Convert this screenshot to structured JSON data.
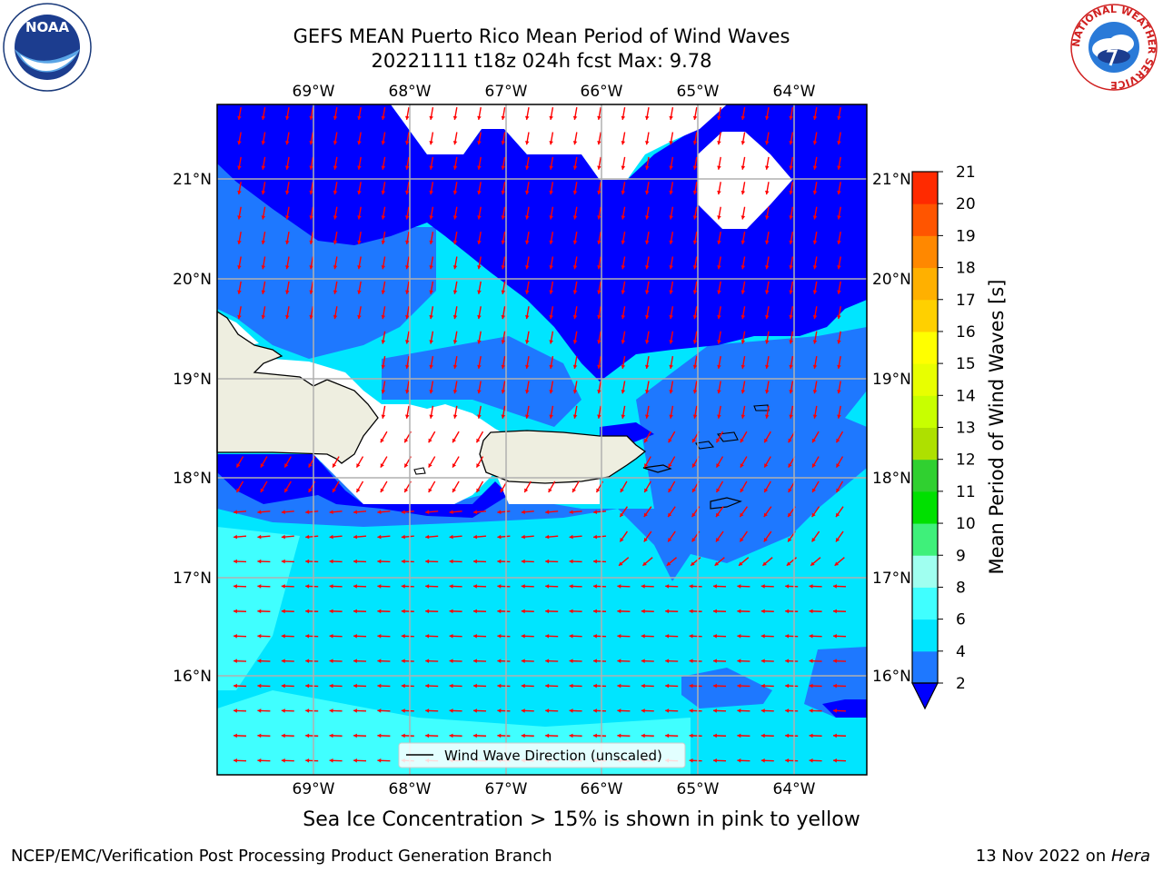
{
  "title_line1": "GEFS MEAN Puerto Rico Mean Period of Wind Waves",
  "title_line2": "20221111 t18z 024h fcst   Max: 9.78",
  "logos": {
    "left": "NOAA",
    "right_ring": "NATIONAL WEATHER SERVICE"
  },
  "map": {
    "lon_labels": [
      "69°W",
      "68°W",
      "67°W",
      "66°W",
      "65°W",
      "64°W"
    ],
    "lat_labels": [
      "21°N",
      "20°N",
      "19°N",
      "18°N",
      "17°N",
      "16°N"
    ],
    "legend_label": "Wind Wave Direction (unscaled)",
    "colors": {
      "land": "#eeeee0",
      "water_lt2": "#ffffff",
      "c2_4": "#0000ff",
      "c4_6": "#1e78ff",
      "c6_8": "#00e5ff",
      "c8_9": "#40ffff",
      "arrow": "#ff0000",
      "grid": "#b0b0b0"
    }
  },
  "colorbar": {
    "label": "Mean Period of Wind Waves [s]",
    "ticks": [
      "2",
      "4",
      "6",
      "8",
      "9",
      "10",
      "11",
      "12",
      "13",
      "14",
      "15",
      "16",
      "17",
      "18",
      "19",
      "20",
      "21"
    ],
    "colors": [
      "#1e78ff",
      "#00e5ff",
      "#40ffff",
      "#a0fff0",
      "#3ff07a",
      "#00e000",
      "#30d030",
      "#aee000",
      "#c8ff00",
      "#e8ff00",
      "#ffff00",
      "#ffd000",
      "#ffb000",
      "#ff8800",
      "#ff5500",
      "#ff2a00",
      "#ff0000"
    ],
    "under_color": "#0000ff"
  },
  "caption": "Sea Ice Concentration > 15% is shown in pink to yellow",
  "footer_left": "NCEP/EMC/Verification Post Processing Product Generation Branch",
  "footer_right_prefix": "13 Nov 2022 on ",
  "footer_right_host": "Hera"
}
